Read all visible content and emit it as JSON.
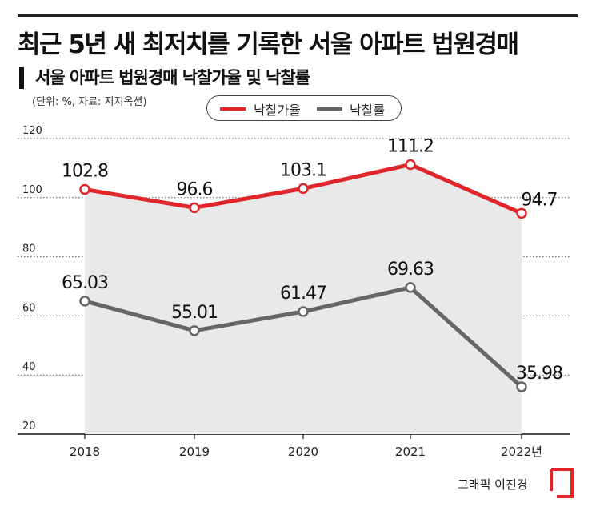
{
  "header": {
    "headline": "최근 5년 새 최저치를 기록한 서울 아파트 법원경매",
    "subtitle": "서울 아파트 법원경매 낙찰가율 및 낙찰률",
    "unit_note": "(단위: %, 자료: 지지옥션)"
  },
  "credit": "그래픽 이진경",
  "colors": {
    "series_1": "#e0262b",
    "series_2": "#666666",
    "area_fill": "#e9e9e9",
    "grid": "#555555"
  },
  "chart_data": {
    "type": "line",
    "title": "서울 아파트 법원경매 낙찰가율 및 낙찰률",
    "x": [
      "2018",
      "2019",
      "2020",
      "2021",
      "2022년"
    ],
    "y_ticks": [
      "120",
      "100",
      "80",
      "60",
      "40",
      "20"
    ],
    "ylim": [
      20,
      120
    ],
    "grid": true,
    "legend_position": "top-center",
    "series": [
      {
        "name": "낙찰가율",
        "values": [
          102.8,
          96.6,
          103.1,
          111.2,
          94.7
        ],
        "labels": [
          "102.8",
          "96.6",
          "103.1",
          "111.2",
          "94.7"
        ]
      },
      {
        "name": "낙찰률",
        "values": [
          65.03,
          55.01,
          61.47,
          69.63,
          35.98
        ],
        "labels": [
          "65.03",
          "55.01",
          "61.47",
          "69.63",
          "35.98"
        ]
      }
    ]
  }
}
